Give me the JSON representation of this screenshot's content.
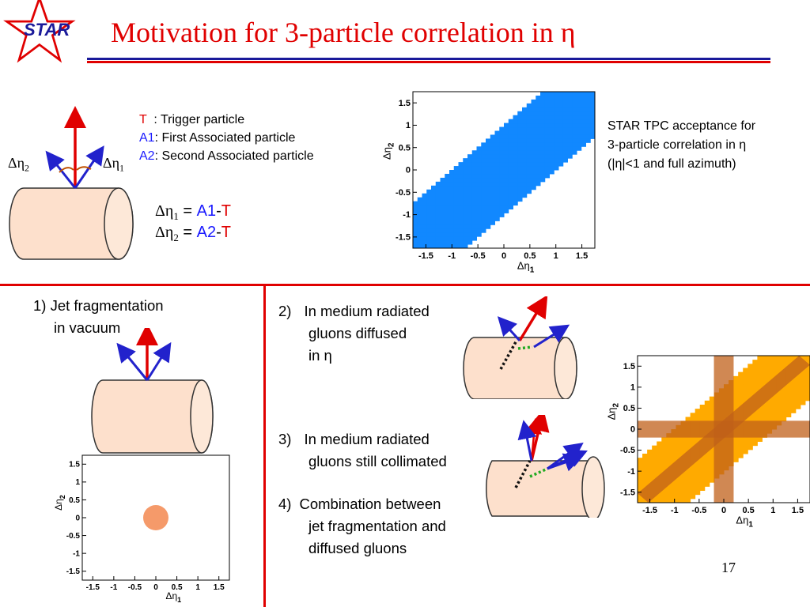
{
  "slide": {
    "logo_text": "STAR",
    "title": "Motivation for 3-particle correlation in η",
    "page_number": "17"
  },
  "legend": {
    "t_symbol": "T",
    "t_text": "  : Trigger particle",
    "a1_symbol": "A1",
    "a1_text": ": First Associated particle",
    "a2_symbol": "A2",
    "a2_text": ": Second Associated particle"
  },
  "diagram_labels": {
    "deta2": "Δη",
    "deta2_sub": "2",
    "deta1": "Δη",
    "deta1_sub": "1"
  },
  "equations": {
    "eq1_lhs": "Δη",
    "eq1_sub": "1",
    "eq1_mid": " = ",
    "eq1_a": "A1",
    "eq1_dash": "-",
    "eq1_t": "T",
    "eq2_lhs": "Δη",
    "eq2_sub": "2",
    "eq2_mid": " = ",
    "eq2_a": "A2",
    "eq2_dash": "-",
    "eq2_t": "T"
  },
  "acceptance_note": {
    "line1": "STAR TPC acceptance for",
    "line2": "3-particle correlation in η",
    "line3": "(|η|<1 and full azimuth)"
  },
  "scenarios": {
    "s1_line1": "1) Jet  fragmentation",
    "s1_line2": "in vacuum",
    "s2_num": "2)",
    "s2_line1": "In medium radiated",
    "s2_line2": "gluons diffused",
    "s2_line3": "in η",
    "s3_num": "3)",
    "s3_line1": "In medium radiated",
    "s3_line2": "gluons still collimated",
    "s4_num": "4)",
    "s4_line1": "Combination between",
    "s4_line2": "jet fragmentation and",
    "s4_line3": "diffused gluons"
  },
  "colors": {
    "title_red": "#e00000",
    "divider_red": "#e00000",
    "acceptance_blue": "#1188ff",
    "jet_orange": "#f59a6a",
    "combo_orange": "#ffaa00",
    "combo_band": "#c0601a",
    "cylinder_fill": "#fde0cc"
  },
  "chart_data": [
    {
      "type": "heatmap",
      "name": "acceptance",
      "xlabel": "Δη1",
      "ylabel": "Δη2",
      "xlim": [
        -1.75,
        1.75
      ],
      "ylim": [
        -1.75,
        1.75
      ],
      "xticks": [
        "-1.5",
        "-1",
        "-0.5",
        "0",
        "0.5",
        "1",
        "1.5"
      ],
      "yticks": [
        "1.5",
        "1",
        "0.5",
        "0",
        "-0.5",
        "-1",
        "-1.5"
      ],
      "region": "|Δη2 − Δη1| ≤ 1 within |Δη| < 2",
      "color": "#1188ff"
    },
    {
      "type": "scatter",
      "name": "jet-fragmentation",
      "xlabel": "Δη1",
      "ylabel": "Δη2",
      "xlim": [
        -1.75,
        1.75
      ],
      "ylim": [
        -1.75,
        1.75
      ],
      "xticks": [
        "-1.5",
        "-1",
        "-0.5",
        "0",
        "0.5",
        "1",
        "1.5"
      ],
      "yticks": [
        "1.5",
        "1",
        "0.5",
        "0",
        "-0.5",
        "-1",
        "-1.5"
      ],
      "points": [
        {
          "x": 0,
          "y": 0
        }
      ],
      "color": "#f59a6a"
    },
    {
      "type": "heatmap",
      "name": "combination",
      "xlabel": "Δη1",
      "ylabel": "Δη2",
      "xlim": [
        -1.75,
        1.75
      ],
      "ylim": [
        -1.75,
        1.75
      ],
      "xticks": [
        "-1.5",
        "-1",
        "-0.5",
        "0",
        "0.5",
        "1",
        "1.5"
      ],
      "yticks": [
        "1.5",
        "1",
        "0.5",
        "0",
        "-0.5",
        "-1",
        "-1.5"
      ],
      "bands": [
        "Δη1 ≈ 0",
        "Δη2 ≈ 0",
        "Δη1 ≈ Δη2"
      ],
      "color": "#ffaa00"
    }
  ]
}
